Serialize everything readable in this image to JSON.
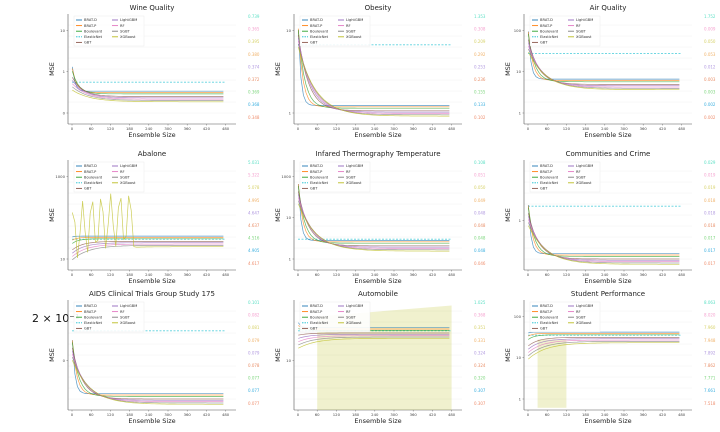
{
  "series_legend": [
    {
      "name": "BRAT-D",
      "color": "#1f77b4",
      "style": "solid"
    },
    {
      "name": "BRAT-P",
      "color": "#ff7f0e",
      "style": "solid"
    },
    {
      "name": "Boulevard",
      "color": "#2ca02c",
      "style": "solid"
    },
    {
      "name": "ElasticNet",
      "color": "#17becf",
      "style": "dashed"
    },
    {
      "name": "GBT",
      "color": "#8c564b",
      "style": "solid"
    },
    {
      "name": "LightGBM",
      "color": "#9467bd",
      "style": "solid"
    },
    {
      "name": "RF",
      "color": "#e377c2",
      "style": "solid"
    },
    {
      "name": "SGBT",
      "color": "#7f7f7f",
      "style": "solid"
    },
    {
      "name": "XGBoost",
      "color": "#bcbd22",
      "style": "solid"
    }
  ],
  "right_value_colors": [
    "#5ee0c6",
    "#f5a3d0",
    "#d7d26a",
    "#f0b26a",
    "#b29be0",
    "#e9906a",
    "#7fd67f",
    "#3db0e0",
    "#ef8f6f"
  ],
  "outside_label": "2 × 10⁻¹",
  "chart_data": [
    {
      "type": "line",
      "title": "Wine Quality",
      "xlabel": "Ensemble Size",
      "ylabel": "MSE",
      "log_y": true,
      "x_ticks": [
        "0",
        "60",
        "120",
        "180",
        "240",
        "300",
        "360",
        "420",
        "480"
      ],
      "y_ticks": [
        "10",
        "1",
        "0"
      ],
      "right_values": [
        "0.739",
        "0.365",
        "0.395",
        "0.380",
        "0.374",
        "0.372",
        "0.369",
        "0.368",
        "0.348"
      ]
    },
    {
      "type": "line",
      "title": "Obesity",
      "xlabel": "Ensemble Size",
      "ylabel": "MSE",
      "log_y": true,
      "x_ticks": [
        "0",
        "60",
        "120",
        "180",
        "240",
        "300",
        "360",
        "420",
        "480"
      ],
      "y_ticks": [
        "10",
        "1"
      ],
      "right_values": [
        "1.353",
        "0.308",
        "0.209",
        "0.292",
        "0.253",
        "0.236",
        "0.155",
        "0.133",
        "0.102"
      ]
    },
    {
      "type": "line",
      "title": "Air Quality",
      "xlabel": "Ensemble Size",
      "ylabel": "MSE",
      "log_y": true,
      "x_ticks": [
        "0",
        "60",
        "120",
        "180",
        "240",
        "300",
        "360",
        "420",
        "480"
      ],
      "y_ticks": [
        "100",
        "10",
        "1"
      ],
      "right_values": [
        "1.752",
        "0.009",
        "0.050",
        "0.053",
        "0.012",
        "0.003",
        "0.003",
        "0.002",
        "0.002"
      ]
    },
    {
      "type": "line",
      "title": "Abalone",
      "xlabel": "Ensemble Size",
      "ylabel": "MSE",
      "log_y": true,
      "x_ticks": [
        "0",
        "60",
        "120",
        "180",
        "240",
        "300",
        "360",
        "420",
        "480"
      ],
      "y_ticks": [
        "1000",
        "10"
      ],
      "right_values": [
        "5.031",
        "5.322",
        "5.078",
        "4.995",
        "4.647",
        "4.637",
        "4.516",
        "4.905",
        "4.617"
      ]
    },
    {
      "type": "line",
      "title": "Infared Thermography Temperature",
      "xlabel": "Ensemble Size",
      "ylabel": "MSE",
      "log_y": true,
      "x_ticks": [
        "0",
        "60",
        "120",
        "180",
        "240",
        "300",
        "360",
        "420",
        "480"
      ],
      "y_ticks": [
        "1000",
        "10",
        "1"
      ],
      "right_values": [
        "0.108",
        "0.051",
        "0.050",
        "0.049",
        "0.048",
        "0.048",
        "0.048",
        "0.048",
        "0.046"
      ]
    },
    {
      "type": "line",
      "title": "Communities and Crime",
      "xlabel": "Ensemble Size",
      "ylabel": "MSE",
      "log_y": true,
      "x_ticks": [
        "0",
        "60",
        "120",
        "180",
        "240",
        "300",
        "360",
        "420",
        "480"
      ],
      "y_ticks": [
        "1"
      ],
      "right_values": [
        "0.029",
        "0.019",
        "0.019",
        "0.018",
        "0.018",
        "0.018",
        "0.017",
        "0.017",
        "0.017"
      ]
    },
    {
      "type": "line",
      "title": "AIDS Clinical Trials Group Study 175",
      "xlabel": "Ensemble Size",
      "ylabel": "MSE",
      "log_y": true,
      "x_ticks": [
        "0",
        "60",
        "120",
        "180",
        "240",
        "300",
        "360",
        "420",
        "480"
      ],
      "y_ticks": [
        "0"
      ],
      "right_values": [
        "0.101",
        "0.082",
        "0.081",
        "0.079",
        "0.079",
        "0.078",
        "0.077",
        "0.077",
        "0.077"
      ]
    },
    {
      "type": "line",
      "title": "Automobile",
      "xlabel": "Ensemble Size",
      "ylabel": "MSE",
      "log_y": true,
      "x_ticks": [
        "0",
        "60",
        "120",
        "180",
        "240",
        "300",
        "360",
        "420",
        "480"
      ],
      "y_ticks": [
        "10"
      ],
      "right_values": [
        "1.025",
        "0.368",
        "0.351",
        "0.331",
        "0.324",
        "0.324",
        "0.320",
        "0.307",
        "0.307"
      ]
    },
    {
      "type": "line",
      "title": "Student Performance",
      "xlabel": "Ensemble Size",
      "ylabel": "MSE",
      "log_y": true,
      "x_ticks": [
        "0",
        "60",
        "120",
        "180",
        "240",
        "300",
        "360",
        "420",
        "480"
      ],
      "y_ticks": [
        "100",
        "10",
        "1"
      ],
      "right_values": [
        "8.063",
        "8.020",
        "7.960",
        "7.948",
        "7.892",
        "7.862",
        "7.771",
        "7.661",
        "7.518"
      ]
    }
  ]
}
